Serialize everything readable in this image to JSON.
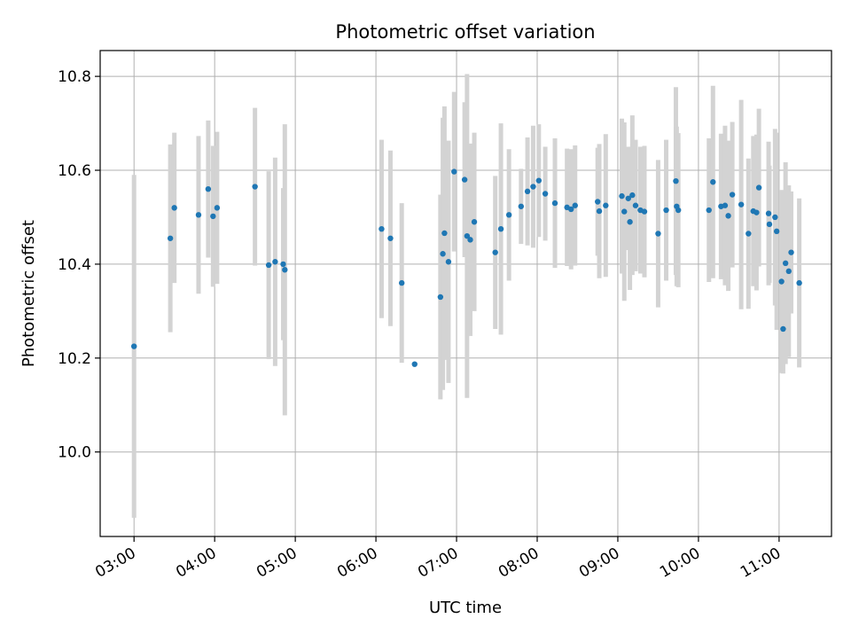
{
  "chart_data": {
    "type": "scatter",
    "title": "Photometric offset variation",
    "xlabel": "UTC time",
    "ylabel": "Photometric offset",
    "x_ticks": [
      "03:00",
      "04:00",
      "05:00",
      "06:00",
      "07:00",
      "08:00",
      "09:00",
      "10:00",
      "11:00"
    ],
    "y_ticks": [
      "10.0",
      "10.2",
      "10.4",
      "10.6",
      "10.8"
    ],
    "y_tick_values": [
      10.0,
      10.2,
      10.4,
      10.6,
      10.8
    ],
    "xlim_hours": [
      2.58,
      11.65
    ],
    "ylim": [
      9.82,
      10.855
    ],
    "grid": true,
    "marker_color": "#1f77b4",
    "errorbar_color": "#d3d3d3",
    "series": [
      {
        "x_hours": [
          3.0,
          3.45,
          3.5,
          3.8,
          3.92,
          3.98,
          4.03,
          4.5,
          4.67,
          4.75,
          4.85,
          4.87,
          6.07,
          6.18,
          6.32,
          6.48,
          6.8,
          6.83,
          6.85,
          6.9,
          6.97,
          7.1,
          7.13,
          7.17,
          7.22,
          7.48,
          7.55,
          7.65,
          7.8,
          7.88,
          7.95,
          8.02,
          8.1,
          8.22,
          8.37,
          8.42,
          8.47,
          8.75,
          8.77,
          8.85,
          9.05,
          9.08,
          9.13,
          9.15,
          9.18,
          9.22,
          9.28,
          9.33,
          9.5,
          9.6,
          9.72,
          9.73,
          9.75,
          10.13,
          10.18,
          10.28,
          10.33,
          10.37,
          10.42,
          10.53,
          10.62,
          10.68,
          10.72,
          10.75,
          10.87,
          10.88,
          10.95,
          10.97,
          11.03,
          11.05,
          11.08,
          11.12,
          11.15,
          11.25
        ],
        "y": [
          10.225,
          10.455,
          10.52,
          10.505,
          10.56,
          10.502,
          10.52,
          10.565,
          10.398,
          10.405,
          10.4,
          10.388,
          10.475,
          10.455,
          10.36,
          10.187,
          10.33,
          10.422,
          10.466,
          10.405,
          10.597,
          10.58,
          10.46,
          10.452,
          10.49,
          10.425,
          10.475,
          10.505,
          10.523,
          10.555,
          10.565,
          10.578,
          10.55,
          10.53,
          10.521,
          10.517,
          10.525,
          10.533,
          10.513,
          10.525,
          10.545,
          10.512,
          10.54,
          10.49,
          10.547,
          10.525,
          10.515,
          10.512,
          10.465,
          10.515,
          10.577,
          10.523,
          10.515,
          10.515,
          10.575,
          10.523,
          10.525,
          10.503,
          10.548,
          10.527,
          10.465,
          10.513,
          10.51,
          10.563,
          10.508,
          10.485,
          10.5,
          10.47,
          10.363,
          10.262,
          10.402,
          10.385,
          10.425,
          10.36
        ],
        "yerr": [
          0.365,
          0.2,
          0.16,
          0.168,
          0.146,
          0.15,
          0.162,
          0.168,
          0.2,
          0.222,
          0.162,
          0.31,
          0.19,
          0.187,
          0.17,
          0.0,
          0.218,
          0.29,
          0.27,
          0.258,
          0.17,
          0.165,
          0.345,
          0.205,
          0.19,
          0.163,
          0.225,
          0.14,
          0.08,
          0.115,
          0.13,
          0.12,
          0.1,
          0.138,
          0.125,
          0.128,
          0.128,
          0.115,
          0.143,
          0.152,
          0.165,
          0.19,
          0.11,
          0.145,
          0.17,
          0.14,
          0.135,
          0.14,
          0.157,
          0.15,
          0.2,
          0.17,
          0.164,
          0.153,
          0.205,
          0.155,
          0.17,
          0.16,
          0.155,
          0.223,
          0.16,
          0.16,
          0.166,
          0.168,
          0.153,
          0.125,
          0.188,
          0.21,
          0.195,
          0.095,
          0.215,
          0.183,
          0.13,
          0.18
        ]
      }
    ]
  }
}
